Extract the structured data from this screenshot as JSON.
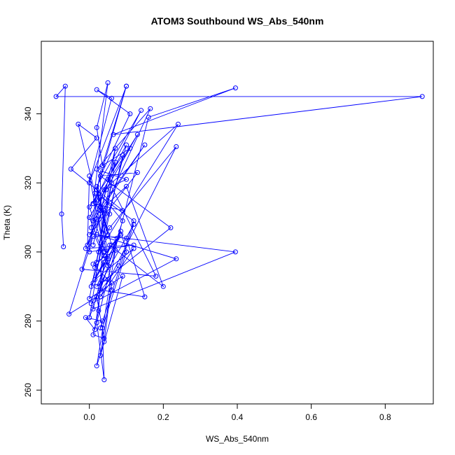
{
  "chart_data": {
    "type": "line",
    "title": "ATOM3 Southbound WS_Abs_540nm",
    "xlabel": "WS_Abs_540nm",
    "ylabel": "Theta (K)",
    "xlim": [
      -0.13,
      0.93
    ],
    "ylim": [
      256,
      361
    ],
    "x_ticks": [
      0.0,
      0.2,
      0.4,
      0.6,
      0.8
    ],
    "x_tick_labels": [
      "0.0",
      "0.2",
      "0.4",
      "0.6",
      "0.8"
    ],
    "y_ticks": [
      260,
      280,
      300,
      320,
      340
    ],
    "y_tick_labels": [
      "260",
      "280",
      "300",
      "320",
      "340"
    ],
    "grid": false,
    "legend": "none",
    "series_color": "#0000ff",
    "marker": "open-circle",
    "series": [
      {
        "x": [
          -0.07,
          -0.075,
          -0.065,
          -0.09,
          0.9,
          0.065,
          0.395,
          0.16,
          0.02,
          0.04,
          0.035,
          0.1,
          0.085,
          0.0,
          0.06,
          0.24,
          0.025,
          0.055,
          0.235,
          0.03,
          0.12,
          0.015,
          0.09,
          0.0,
          0.05,
          0.06,
          0.03,
          0.12,
          0.08,
          0.005,
          0.235,
          0.02,
          0.395,
          0.01,
          0.055,
          0.2,
          0.1,
          0.03,
          0.03,
          0.22,
          0.02,
          0.075,
          0.015,
          0.1,
          0.05,
          0.18,
          -0.02,
          0.04,
          0.1,
          0.03,
          0.005,
          0.05,
          0.02,
          0.09,
          0.03,
          0.15,
          0.1,
          0.01,
          -0.055,
          0.02,
          0.04,
          0.01,
          0.025,
          0.035,
          0.005,
          0.04,
          0.015,
          -0.01,
          0.035,
          0.03,
          0.12,
          0.03,
          0.05,
          0.01,
          0.07,
          0.02,
          0.04,
          0.06,
          0.03,
          0.09,
          0.0,
          0.07,
          0.01,
          0.15,
          0.03,
          0.05,
          0.02,
          0.14,
          0.01,
          0.05,
          0.02,
          0.035,
          0.1,
          0.0,
          0.06,
          0.02,
          0.11,
          0.03,
          0.13,
          0.0,
          0.04,
          0.02,
          0.07,
          0.01,
          0.045,
          0.13,
          0.02,
          0.0,
          0.12,
          -0.01,
          0.02,
          0.055,
          0.01,
          0.09,
          -0.05,
          0.02,
          -0.03,
          0.015,
          0.04,
          0.0,
          -0.005,
          0.165,
          0.02,
          0.11,
          0.0,
          0.04,
          0.085,
          0.01,
          0.06,
          0.02,
          0.1
        ],
        "y": [
          301.5,
          311,
          348,
          345,
          345,
          334,
          347.5,
          339,
          279.5,
          263,
          278,
          300,
          306,
          281,
          320,
          337,
          300,
          307,
          330.5,
          287,
          301,
          292,
          328,
          313,
          298,
          289,
          316,
          309,
          296,
          285,
          298,
          305,
          300,
          283.5,
          302,
          290,
          319,
          312,
          322,
          307,
          290,
          304,
          295.5,
          331,
          321,
          293,
          295,
          318,
          321,
          323.5,
          307,
          296,
          318,
          309,
          289,
          287,
          304,
          304.5,
          282,
          287,
          275,
          276,
          283,
          301,
          290,
          297,
          277.5,
          281,
          280,
          278,
          308,
          291,
          292,
          296.5,
          300.5,
          267,
          274,
          291,
          270,
          293,
          286.5,
          326,
          309,
          331,
          313,
          305,
          319,
          341,
          314,
          349,
          336,
          325,
          348,
          320,
          344.5,
          347,
          340,
          322,
          323,
          305,
          312,
          297,
          330,
          302,
          318,
          334,
          315,
          300,
          302,
          301,
          309.5,
          311,
          314,
          312,
          324,
          333,
          337,
          317,
          300,
          322,
          302,
          341.5,
          324,
          330,
          310,
          299,
          305,
          291,
          302,
          318,
          348
        ]
      }
    ]
  }
}
